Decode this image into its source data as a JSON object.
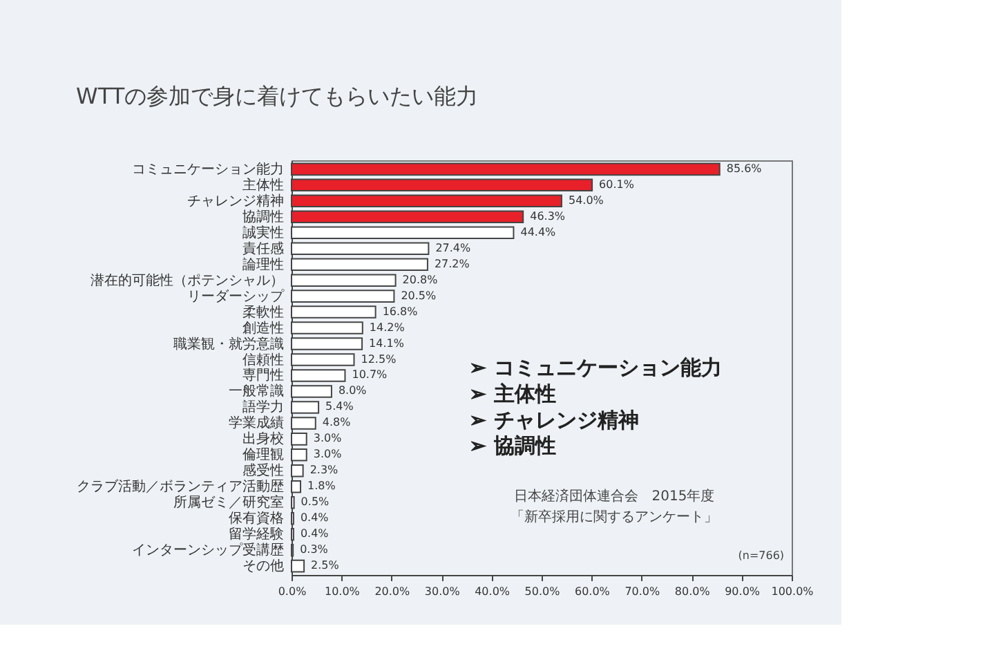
{
  "chart_data": {
    "type": "bar",
    "orientation": "horizontal",
    "title": "WTTの参加で身に着けてもらいたい能力",
    "categories": [
      "コミュニケーション能力",
      "主体性",
      "チャレンジ精神",
      "協調性",
      "誠実性",
      "責任感",
      "論理性",
      "潜在的可能性（ポテンシャル）",
      "リーダーシップ",
      "柔軟性",
      "創造性",
      "職業観・就労意識",
      "信頼性",
      "専門性",
      "一般常識",
      "語学力",
      "学業成績",
      "出身校",
      "倫理観",
      "感受性",
      "クラブ活動／ボランティア活動歴",
      "所属ゼミ／研究室",
      "保有資格",
      "留学経験",
      "インターンシップ受講歴",
      "その他"
    ],
    "values": [
      85.6,
      60.1,
      54.0,
      46.3,
      44.4,
      27.4,
      27.2,
      20.8,
      20.5,
      16.8,
      14.2,
      14.1,
      12.5,
      10.7,
      8.0,
      5.4,
      4.8,
      3.0,
      3.0,
      2.3,
      1.8,
      0.5,
      0.4,
      0.4,
      0.3,
      2.5
    ],
    "value_labels": [
      "85.6%",
      "60.1%",
      "54.0%",
      "46.3%",
      "44.4%",
      "27.4%",
      "27.2%",
      "20.8%",
      "20.5%",
      "16.8%",
      "14.2%",
      "14.1%",
      "12.5%",
      "10.7%",
      "8.0%",
      "5.4%",
      "4.8%",
      "3.0%",
      "3.0%",
      "2.3%",
      "1.8%",
      "0.5%",
      "0.4%",
      "0.4%",
      "0.3%",
      "2.5%"
    ],
    "colors": [
      "#e8202a",
      "#e8202a",
      "#e8202a",
      "#e8202a",
      "#ffffff",
      "#ffffff",
      "#ffffff",
      "#ffffff",
      "#ffffff",
      "#ffffff",
      "#ffffff",
      "#ffffff",
      "#ffffff",
      "#ffffff",
      "#ffffff",
      "#ffffff",
      "#ffffff",
      "#ffffff",
      "#ffffff",
      "#ffffff",
      "#ffffff",
      "#ffffff",
      "#ffffff",
      "#ffffff",
      "#ffffff",
      "#ffffff"
    ],
    "xlim": [
      0,
      100
    ],
    "xticks": [
      {
        "value": 0,
        "label": "0.0%"
      },
      {
        "value": 10,
        "label": "10.0%"
      },
      {
        "value": 20,
        "label": "20.0%"
      },
      {
        "value": 30,
        "label": "30.0%"
      },
      {
        "value": 40,
        "label": "40.0%"
      },
      {
        "value": 50,
        "label": "50.0%"
      },
      {
        "value": 60,
        "label": "60.0%"
      },
      {
        "value": 70,
        "label": "70.0%"
      },
      {
        "value": 80,
        "label": "80.0%"
      },
      {
        "value": 90,
        "label": "90.0%"
      },
      {
        "value": 100,
        "label": "100.0%"
      }
    ],
    "grid": false,
    "annotations": [
      "➢ コミュニケーション能力",
      "➢ 主体性",
      "➢ チャレンジ精神",
      "➢ 協調性",
      "日本経済団体連合会　2015年度",
      "「新卒採用に関するアンケート」",
      "(n=766)"
    ]
  }
}
